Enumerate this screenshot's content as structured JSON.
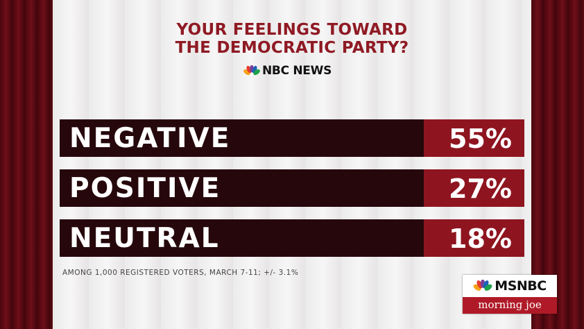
{
  "title_line1": "YOUR FEELINGS TOWARD",
  "title_line2": "THE DEMOCRATIC PARTY?",
  "source_logo_text": "NBC NEWS",
  "colors": {
    "title": "#8f1a24",
    "bar_background": "#26080c",
    "value_background": "#8e1520",
    "bar_text": "#ffffff"
  },
  "chart_data": {
    "type": "bar",
    "title": "YOUR FEELINGS TOWARD THE DEMOCRATIC PARTY?",
    "categories": [
      "NEGATIVE",
      "POSITIVE",
      "NEUTRAL"
    ],
    "values": [
      55,
      27,
      18
    ],
    "value_labels": [
      "55%",
      "27%",
      "18%"
    ],
    "unit": "%"
  },
  "footnote": "AMONG 1,000 REGISTERED VOTERS, MARCH 7-11; +/- 3.1%",
  "network": {
    "name": "MSNBC",
    "show": "morning joe",
    "icon": "peacock-icon"
  }
}
